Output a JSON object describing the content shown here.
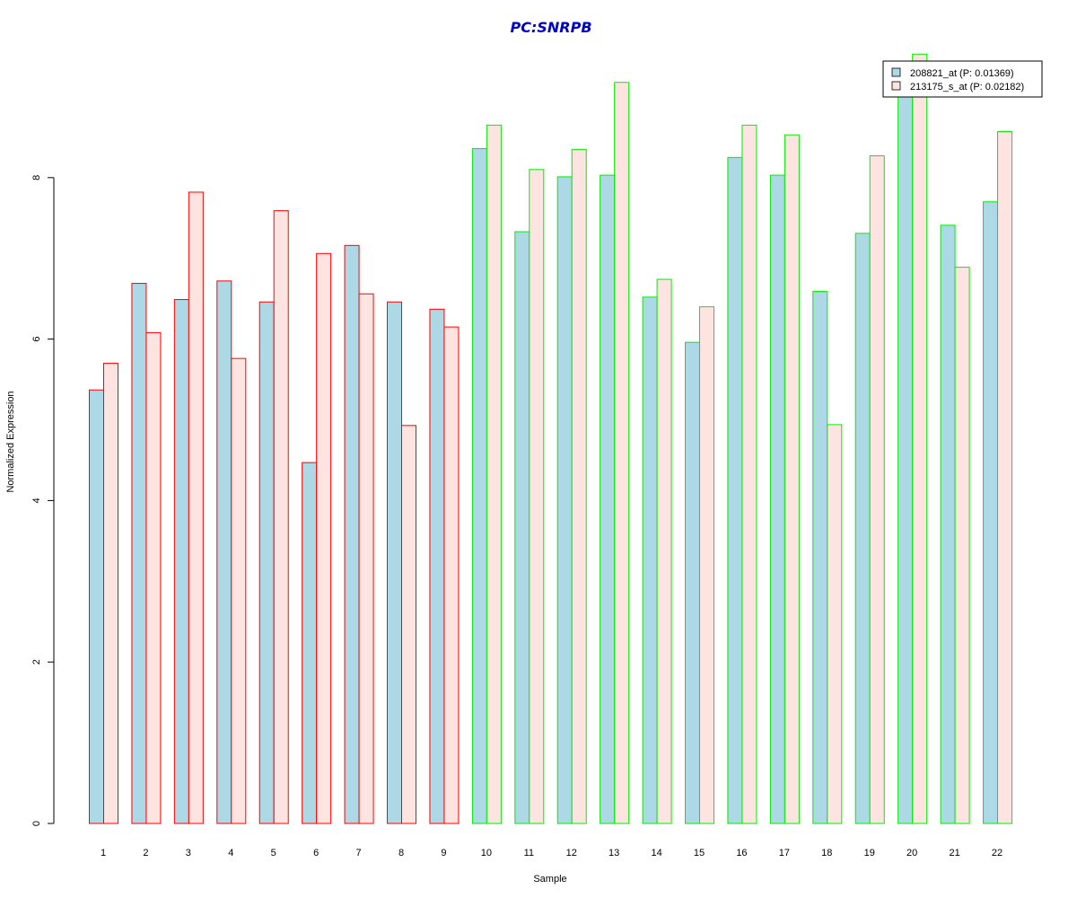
{
  "chart_data": {
    "type": "bar",
    "title": "PC:SNRPB",
    "xlabel": "Sample",
    "ylabel": "Normalized Expression",
    "categories": [
      "1",
      "2",
      "3",
      "4",
      "5",
      "6",
      "7",
      "8",
      "9",
      "10",
      "11",
      "12",
      "13",
      "14",
      "15",
      "16",
      "17",
      "18",
      "19",
      "20",
      "21",
      "22"
    ],
    "yticks": [
      0,
      2,
      4,
      6,
      8
    ],
    "ylim": [
      0,
      9.6
    ],
    "series": [
      {
        "name": "208821_at (P: 0.01369)",
        "fill": "#add8e6",
        "values": [
          5.37,
          6.69,
          6.49,
          6.72,
          6.46,
          4.47,
          7.16,
          6.46,
          6.37,
          8.36,
          7.33,
          8.01,
          8.03,
          6.52,
          5.96,
          8.25,
          8.03,
          6.59,
          7.31,
          9.13,
          7.41,
          7.7
        ]
      },
      {
        "name": "213175_s_at (P: 0.02182)",
        "fill": "#fde4e1",
        "values": [
          5.7,
          6.08,
          7.82,
          5.76,
          7.59,
          7.06,
          6.56,
          4.93,
          6.15,
          8.65,
          8.1,
          8.35,
          9.18,
          6.74,
          6.4,
          8.65,
          8.53,
          4.94,
          8.27,
          9.53,
          6.89,
          8.57
        ]
      }
    ],
    "group_border_colors": [
      "#ff0000",
      "#ff0000",
      "#ff0000",
      "#ff0000",
      "#ff0000",
      "#ff0000",
      "#ff0000",
      "#ff0000",
      "#ff0000",
      "#00ee00",
      "#00ee00",
      "#00ee00",
      "#00ee00",
      "#00ee00",
      "#00ee00",
      "#00ee00",
      "#00ee00",
      "#00ee00",
      "#00ee00",
      "#00ee00",
      "#00ee00",
      "#00ee00"
    ],
    "legend_position": "top-right",
    "grid": false
  }
}
